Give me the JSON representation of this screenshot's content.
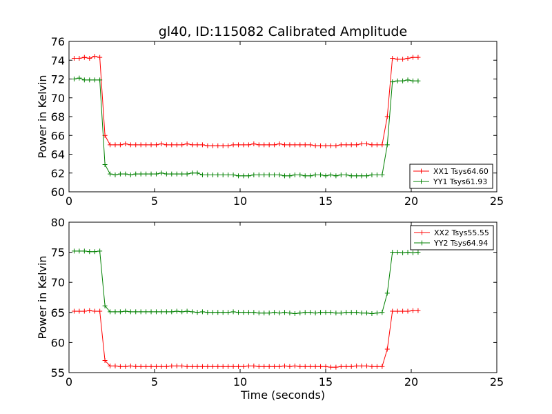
{
  "chart_data": [
    {
      "type": "line",
      "title": "gl40, ID:115082 Calibrated Amplitude",
      "xlabel": "",
      "ylabel": "Power in Kelvin",
      "xlim": [
        0,
        25
      ],
      "ylim": [
        60,
        76
      ],
      "xticks": [
        0,
        5,
        10,
        15,
        20,
        25
      ],
      "yticks": [
        60,
        62,
        64,
        66,
        68,
        70,
        72,
        74,
        76
      ],
      "legend_position": "lower-right",
      "x": [
        0.3,
        0.6,
        0.9,
        1.2,
        1.5,
        1.8,
        2.1,
        2.4,
        2.7,
        3.0,
        3.3,
        3.6,
        3.9,
        4.2,
        4.5,
        4.8,
        5.1,
        5.4,
        5.7,
        6.0,
        6.3,
        6.6,
        6.9,
        7.2,
        7.5,
        7.8,
        8.1,
        8.4,
        8.7,
        9.0,
        9.3,
        9.6,
        9.9,
        10.2,
        10.5,
        10.8,
        11.1,
        11.4,
        11.7,
        12.0,
        12.3,
        12.6,
        12.9,
        13.2,
        13.5,
        13.8,
        14.1,
        14.4,
        14.7,
        15.0,
        15.3,
        15.6,
        15.9,
        16.2,
        16.5,
        16.8,
        17.1,
        17.4,
        17.7,
        18.0,
        18.3,
        18.6,
        18.9,
        19.2,
        19.5,
        19.8,
        20.1,
        20.4
      ],
      "series": [
        {
          "name": "XX1 Tsys64.60",
          "color": "#ff0000",
          "values": [
            74.2,
            74.2,
            74.3,
            74.2,
            74.4,
            74.3,
            66.0,
            65.0,
            65.0,
            65.0,
            65.1,
            65.0,
            65.0,
            65.0,
            65.0,
            65.0,
            65.0,
            65.1,
            65.0,
            65.0,
            65.0,
            65.0,
            65.1,
            65.0,
            65.0,
            65.0,
            64.9,
            64.9,
            64.9,
            64.9,
            64.9,
            65.0,
            65.0,
            65.0,
            65.0,
            65.1,
            65.0,
            65.0,
            65.0,
            65.0,
            65.1,
            65.0,
            65.0,
            65.0,
            65.0,
            65.0,
            65.0,
            64.9,
            64.9,
            64.9,
            64.9,
            64.9,
            65.0,
            65.0,
            65.0,
            65.0,
            65.1,
            65.1,
            65.0,
            65.0,
            65.0,
            68.0,
            74.2,
            74.1,
            74.1,
            74.2,
            74.3,
            74.3
          ]
        },
        {
          "name": "YY1 Tsys61.93",
          "color": "#008000",
          "values": [
            72.0,
            72.1,
            71.9,
            71.9,
            71.9,
            71.9,
            62.9,
            61.9,
            61.8,
            61.9,
            61.9,
            61.8,
            61.9,
            61.9,
            61.9,
            61.9,
            61.9,
            62.0,
            61.9,
            61.9,
            61.9,
            61.9,
            61.9,
            62.0,
            62.0,
            61.8,
            61.8,
            61.8,
            61.8,
            61.8,
            61.8,
            61.8,
            61.7,
            61.7,
            61.7,
            61.8,
            61.8,
            61.8,
            61.8,
            61.8,
            61.8,
            61.7,
            61.7,
            61.8,
            61.8,
            61.7,
            61.7,
            61.8,
            61.8,
            61.7,
            61.8,
            61.7,
            61.8,
            61.8,
            61.7,
            61.7,
            61.7,
            61.7,
            61.8,
            61.8,
            61.8,
            65.0,
            71.7,
            71.8,
            71.8,
            71.9,
            71.8,
            71.8
          ]
        }
      ]
    },
    {
      "type": "line",
      "title": "",
      "xlabel": "Time (seconds)",
      "ylabel": "Power in Kelvin",
      "xlim": [
        0,
        25
      ],
      "ylim": [
        55,
        80
      ],
      "xticks": [
        0,
        5,
        10,
        15,
        20,
        25
      ],
      "yticks": [
        55,
        60,
        65,
        70,
        75,
        80
      ],
      "legend_position": "upper-right",
      "x": [
        0.3,
        0.6,
        0.9,
        1.2,
        1.5,
        1.8,
        2.1,
        2.4,
        2.7,
        3.0,
        3.3,
        3.6,
        3.9,
        4.2,
        4.5,
        4.8,
        5.1,
        5.4,
        5.7,
        6.0,
        6.3,
        6.6,
        6.9,
        7.2,
        7.5,
        7.8,
        8.1,
        8.4,
        8.7,
        9.0,
        9.3,
        9.6,
        9.9,
        10.2,
        10.5,
        10.8,
        11.1,
        11.4,
        11.7,
        12.0,
        12.3,
        12.6,
        12.9,
        13.2,
        13.5,
        13.8,
        14.1,
        14.4,
        14.7,
        15.0,
        15.3,
        15.6,
        15.9,
        16.2,
        16.5,
        16.8,
        17.1,
        17.4,
        17.7,
        18.0,
        18.3,
        18.6,
        18.9,
        19.2,
        19.5,
        19.8,
        20.1,
        20.4
      ],
      "series": [
        {
          "name": "XX2 Tsys55.55",
          "color": "#ff0000",
          "values": [
            65.2,
            65.2,
            65.2,
            65.3,
            65.2,
            65.2,
            57.0,
            56.1,
            56.1,
            56.0,
            56.0,
            56.1,
            56.0,
            56.0,
            56.0,
            56.0,
            56.0,
            56.0,
            56.0,
            56.1,
            56.1,
            56.1,
            56.0,
            56.0,
            56.0,
            56.0,
            56.0,
            56.0,
            56.0,
            56.0,
            56.0,
            56.0,
            56.0,
            56.0,
            56.1,
            56.1,
            56.0,
            56.0,
            56.0,
            56.0,
            56.0,
            56.1,
            56.0,
            56.1,
            56.0,
            56.0,
            56.0,
            56.0,
            56.0,
            56.0,
            55.9,
            55.9,
            56.0,
            56.0,
            56.0,
            56.1,
            56.1,
            56.1,
            56.0,
            56.0,
            56.0,
            58.9,
            65.2,
            65.2,
            65.2,
            65.2,
            65.3,
            65.3
          ]
        },
        {
          "name": "YY2 Tsys64.94",
          "color": "#008000",
          "values": [
            75.2,
            75.2,
            75.2,
            75.1,
            75.1,
            75.2,
            66.1,
            65.1,
            65.1,
            65.1,
            65.2,
            65.1,
            65.1,
            65.1,
            65.1,
            65.1,
            65.1,
            65.1,
            65.1,
            65.1,
            65.2,
            65.1,
            65.2,
            65.1,
            65.0,
            65.1,
            65.0,
            65.0,
            65.0,
            65.0,
            65.0,
            65.1,
            65.0,
            65.0,
            65.0,
            65.0,
            64.9,
            64.9,
            64.9,
            65.0,
            64.9,
            65.0,
            64.9,
            64.8,
            64.9,
            65.0,
            65.0,
            64.9,
            65.0,
            65.0,
            65.0,
            64.9,
            64.9,
            65.0,
            65.0,
            65.0,
            64.9,
            64.9,
            64.8,
            64.9,
            65.0,
            68.2,
            75.0,
            75.0,
            74.9,
            75.0,
            74.9,
            75.0
          ]
        }
      ]
    }
  ]
}
